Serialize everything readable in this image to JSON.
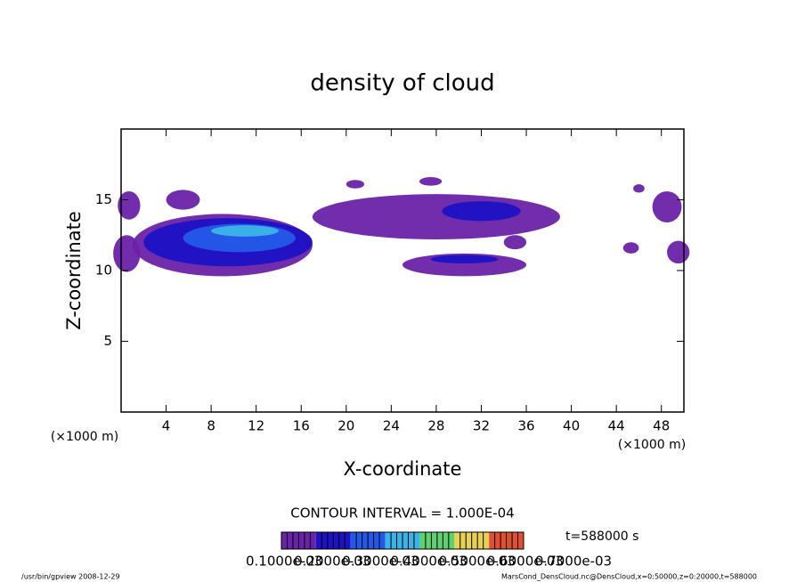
{
  "chart_data": {
    "type": "contour",
    "title": "density of cloud",
    "xlabel": "X-coordinate",
    "ylabel": "Z-coordinate",
    "xunit": "(×1000 m)",
    "yunit": "(×1000 m)",
    "xlim": [
      0,
      50
    ],
    "ylim": [
      0,
      20
    ],
    "xticks": [
      4,
      8,
      12,
      16,
      20,
      24,
      28,
      32,
      36,
      40,
      44,
      48
    ],
    "yticks": [
      5,
      10,
      15
    ],
    "contour_interval": "CONTOUR INTERVAL = 1.000E-04",
    "time_label": "t=588000 s",
    "levels": [
      {
        "value": 0.0001,
        "label": "0.1000e-03"
      },
      {
        "value": 0.0002,
        "label": "0.2000e-03"
      },
      {
        "value": 0.0003,
        "label": "0.3000e-03"
      },
      {
        "value": 0.0004,
        "label": "0.4000e-03"
      },
      {
        "value": 0.0005,
        "label": "0.5000e-03"
      },
      {
        "value": 0.0006,
        "label": "0.6000e-03"
      },
      {
        "value": 0.0007,
        "label": "0.7000e-03"
      }
    ],
    "colors": [
      "#6a22a8",
      "#1c12c4",
      "#2458e8",
      "#3cb4e8",
      "#5fd070",
      "#e8d050",
      "#e05030"
    ],
    "blobs": {
      "x": [
        9,
        9.5,
        10.5,
        11,
        0.5,
        0.7,
        5.5,
        28,
        32,
        20.8,
        27.5,
        30.5,
        30.5,
        48.5,
        49.5,
        45.3,
        46,
        35
      ],
      "z": [
        11.8,
        12,
        12.3,
        12.8,
        11.2,
        14.6,
        15,
        13.8,
        14.2,
        16.1,
        16.3,
        10.4,
        10.8,
        14.5,
        11.3,
        11.6,
        15.8,
        12
      ],
      "rx": [
        8,
        7.5,
        5,
        3,
        1.2,
        1,
        1.5,
        11,
        3.5,
        0.8,
        1,
        5.5,
        3,
        1.3,
        1,
        0.7,
        0.5,
        1
      ],
      "rz": [
        2.2,
        1.7,
        1,
        0.4,
        1.3,
        1,
        0.7,
        1.6,
        0.7,
        0.3,
        0.3,
        0.8,
        0.3,
        1.1,
        0.8,
        0.4,
        0.3,
        0.5
      ],
      "values": [
        0.0001,
        0.0002,
        0.0003,
        0.0004,
        0.0001,
        0.0001,
        0.0001,
        0.0001,
        0.0002,
        0.0001,
        0.0001,
        0.0001,
        0.0002,
        0.0001,
        0.0001,
        0.0001,
        0.0001,
        0.0001
      ]
    },
    "footer_left": "/usr/bin/gpview  2008-12-29",
    "footer_right": "MarsCond_DensCloud.nc@DensCloud,x=0:50000,z=0:20000,t=588000"
  }
}
